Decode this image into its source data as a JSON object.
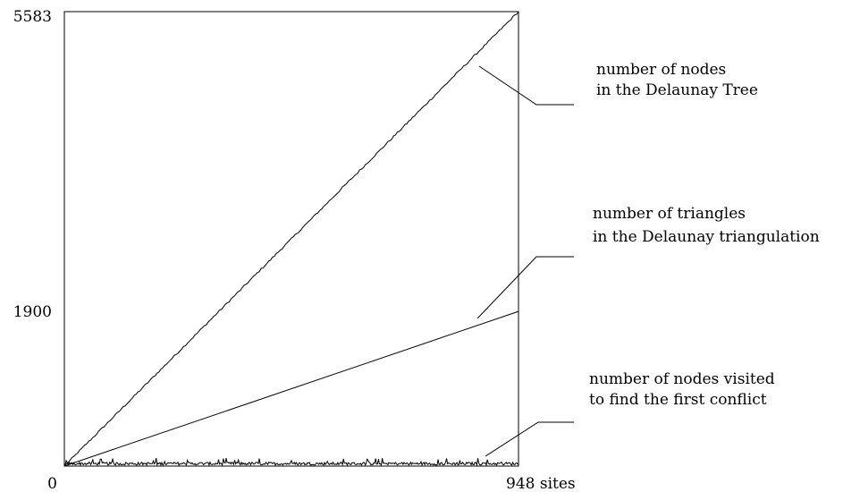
{
  "chart_data": {
    "type": "line",
    "xlim": [
      0,
      948
    ],
    "ylim": [
      0,
      5583
    ],
    "x_tick_labels": [
      "0",
      "948 sites"
    ],
    "y_tick_labels": [
      "1900",
      "5583"
    ],
    "grid": false,
    "series": [
      {
        "name": "number of nodes in the Delaunay Tree",
        "label_lines": [
          "number of nodes",
          "in the Delaunay Tree"
        ],
        "x": [
          0,
          948
        ],
        "y": [
          0,
          5583
        ],
        "style": "noisy-linear"
      },
      {
        "name": "number of triangles in the Delaunay triangulation",
        "label_lines": [
          "number of triangles",
          "in the Delaunay triangulation"
        ],
        "x": [
          0,
          948
        ],
        "y": [
          0,
          1900
        ],
        "style": "linear"
      },
      {
        "name": "number of nodes visited to find the first conflict",
        "label_lines": [
          "number of nodes visited",
          "to find the first conflict"
        ],
        "x": [
          0,
          948
        ],
        "y_mean": 30,
        "y_max": 100,
        "style": "noise"
      }
    ]
  }
}
